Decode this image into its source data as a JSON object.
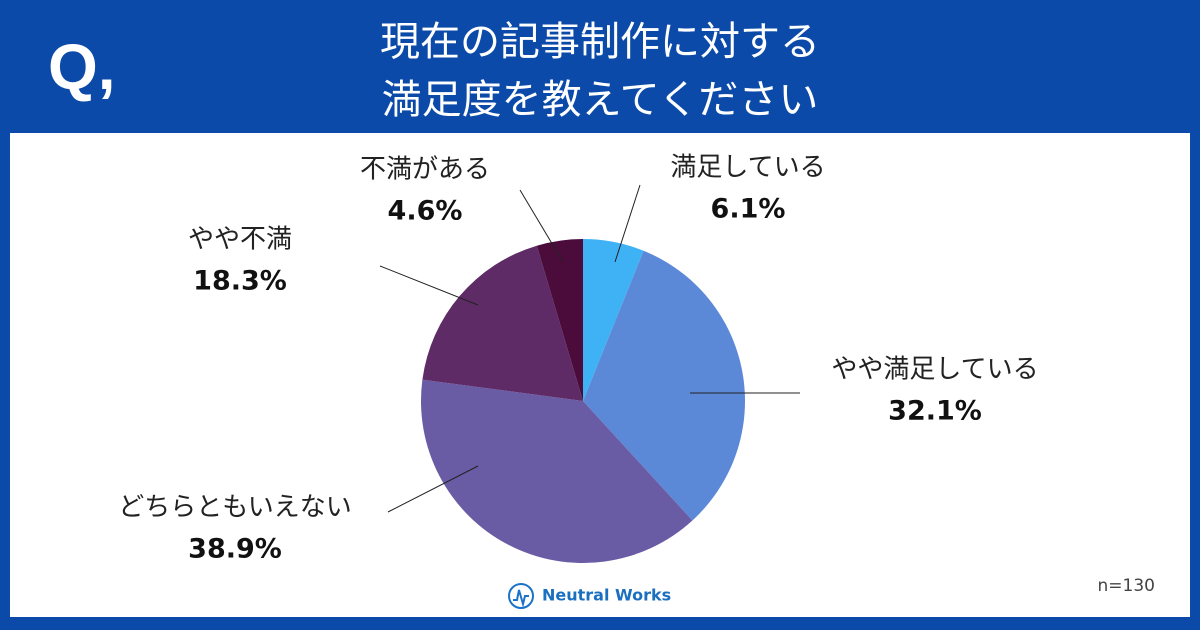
{
  "chart_data": {
    "type": "pie",
    "question_mark": "Q,",
    "title": [
      "現在の記事制作に対する",
      "満足度を教えてください"
    ],
    "categories": [
      "満足している",
      "やや満足している",
      "どちらともいえない",
      "やや不満",
      "不満がある"
    ],
    "values": [
      6.1,
      32.1,
      38.9,
      18.3,
      4.6
    ],
    "value_labels": [
      "6.1%",
      "32.1%",
      "38.9%",
      "18.3%",
      "4.6%"
    ],
    "colors": [
      "#3fb2f6",
      "#5c88d8",
      "#6a5ba5",
      "#5e2b67",
      "#4b0c3c"
    ],
    "note": "n=130",
    "brand": "Neutral Works"
  }
}
